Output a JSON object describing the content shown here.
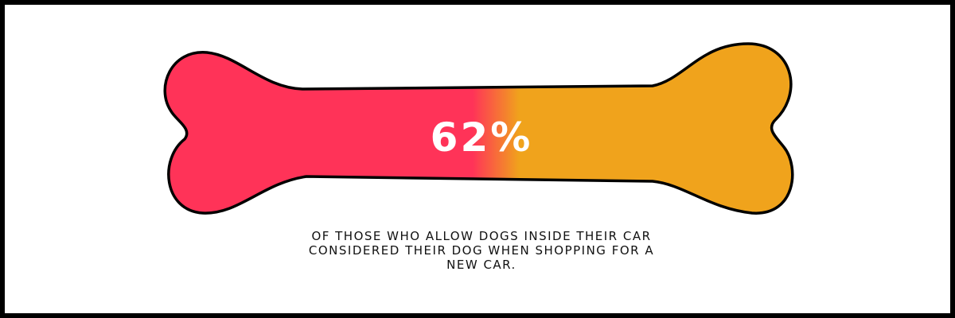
{
  "stat": {
    "text": "62%"
  },
  "caption": {
    "lines": [
      "OF THOSE WHO ALLOW DOGS INSIDE THEIR CAR",
      "CONSIDERED THEIR DOG WHEN SHOPPING FOR A",
      "NEW CAR."
    ]
  }
}
